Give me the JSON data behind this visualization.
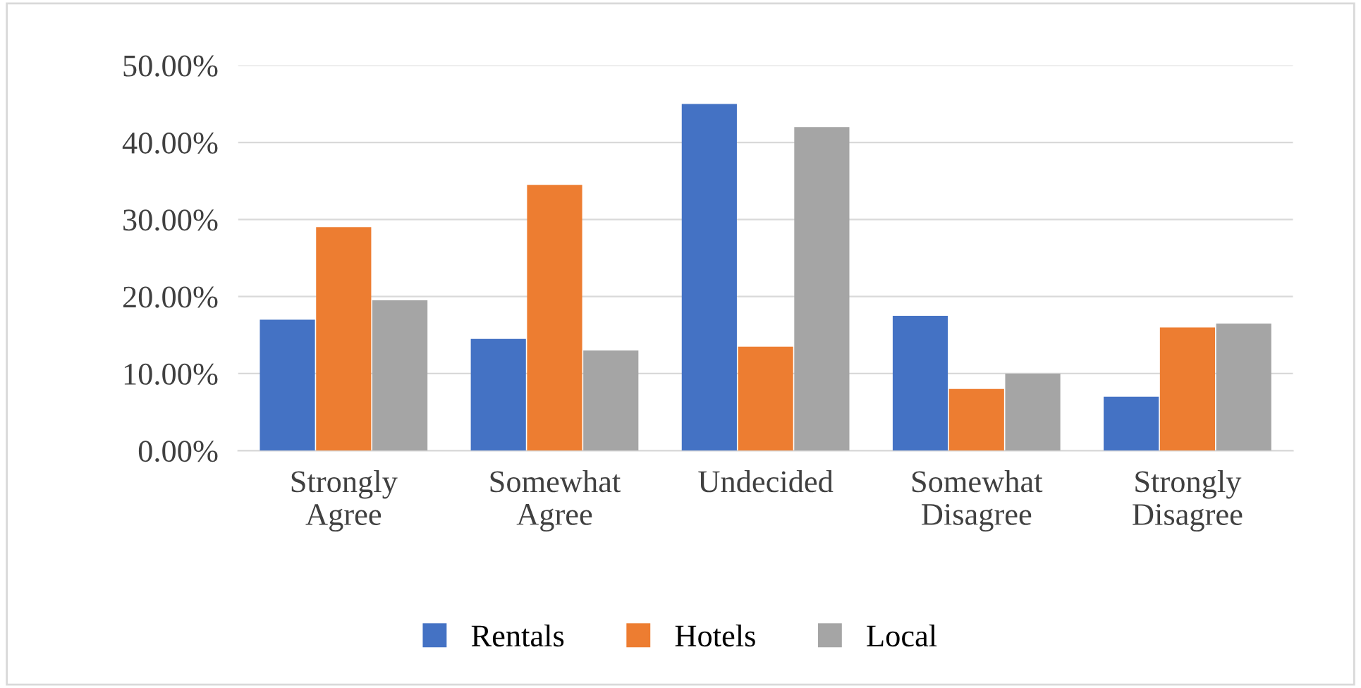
{
  "chart_data": {
    "type": "bar",
    "categories": [
      "Strongly\nAgree",
      "Somewhat\nAgree",
      "Undecided",
      "Somewhat\nDisagree",
      "Strongly\nDisagree"
    ],
    "series": [
      {
        "name": "Rentals",
        "color": "#4472c4",
        "values": [
          17,
          14.5,
          45,
          17.5,
          7
        ]
      },
      {
        "name": "Hotels",
        "color": "#ed7d31",
        "values": [
          29,
          34.5,
          13.5,
          8,
          16
        ]
      },
      {
        "name": "Local",
        "color": "#a5a5a5",
        "values": [
          19.5,
          13,
          42,
          10,
          16.5
        ]
      }
    ],
    "ylim": [
      0,
      50
    ],
    "yticks": [
      {
        "value": 0,
        "label": "0.00%"
      },
      {
        "value": 10,
        "label": "10.00%"
      },
      {
        "value": 20,
        "label": "20.00%"
      },
      {
        "value": 30,
        "label": "30.00%"
      },
      {
        "value": 40,
        "label": "40.00%"
      },
      {
        "value": 50,
        "label": "50.00%"
      }
    ],
    "grid": "y",
    "legend": "bottom"
  }
}
